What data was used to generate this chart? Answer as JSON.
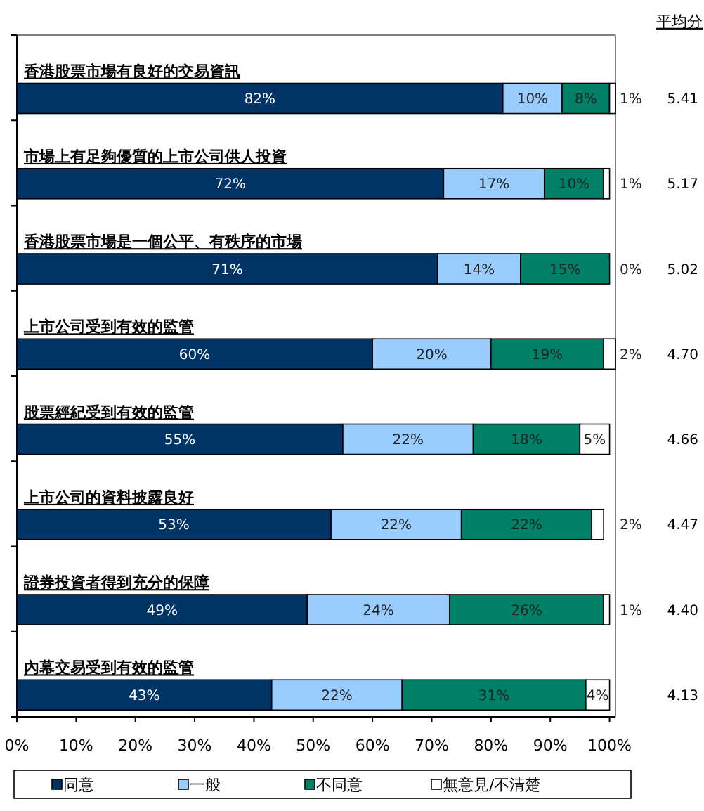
{
  "chart_data": {
    "type": "bar",
    "orientation": "horizontal",
    "stacked": true,
    "categories": [
      "香港股票市場有良好的交易資訊",
      "市場上有足夠優質的上市公司供人投資",
      "香港股票市場是一個公平、有秩序的市場",
      "上市公司受到有效的監管",
      "股票經紀受到有效的監管",
      "上市公司的資料披露良好",
      "證券投資者得到充分的保障",
      "內幕交易受到有效的監管"
    ],
    "series": [
      {
        "name": "同意",
        "color": "#003366",
        "values": [
          82,
          72,
          71,
          60,
          55,
          53,
          49,
          43
        ],
        "value_labels": [
          "82%",
          "72%",
          "71%",
          "60%",
          "55%",
          "53%",
          "49%",
          "43%"
        ]
      },
      {
        "name": "一般",
        "color": "#99ccff",
        "values": [
          10,
          17,
          14,
          20,
          22,
          22,
          24,
          22
        ],
        "value_labels": [
          "10%",
          "17%",
          "14%",
          "20%",
          "22%",
          "22%",
          "24%",
          "22%"
        ]
      },
      {
        "name": "不同意",
        "color": "#008066",
        "values": [
          8,
          10,
          15,
          19,
          18,
          22,
          26,
          31
        ],
        "value_labels": [
          "8%",
          "10%",
          "15%",
          "19%",
          "18%",
          "22%",
          "26%",
          "31%"
        ]
      },
      {
        "name": "無意見/不清楚",
        "color": "#ffffff",
        "values": [
          1,
          1,
          0,
          2,
          5,
          2,
          1,
          4
        ],
        "value_labels": [
          "1%",
          "1%",
          "0%",
          "2%",
          "5%",
          "2%",
          "1%",
          "4%"
        ]
      }
    ],
    "xlim": [
      0,
      101
    ],
    "xticks": [
      {
        "value": 0,
        "label": "0%"
      },
      {
        "value": 10,
        "label": "10%"
      },
      {
        "value": 20,
        "label": "20%"
      },
      {
        "value": 30,
        "label": "30%"
      },
      {
        "value": 40,
        "label": "40%"
      },
      {
        "value": 50,
        "label": "50%"
      },
      {
        "value": 60,
        "label": "60%"
      },
      {
        "value": 70,
        "label": "70%"
      },
      {
        "value": 80,
        "label": "80%"
      },
      {
        "value": 90,
        "label": "90%"
      },
      {
        "value": 100,
        "label": "100%"
      }
    ],
    "annotations": [
      "平均分",
      "5.41",
      "5.17",
      "5.02",
      "4.70",
      "4.66",
      "4.47",
      "4.40",
      "4.13"
    ],
    "legend": "bottom",
    "grid": false
  }
}
